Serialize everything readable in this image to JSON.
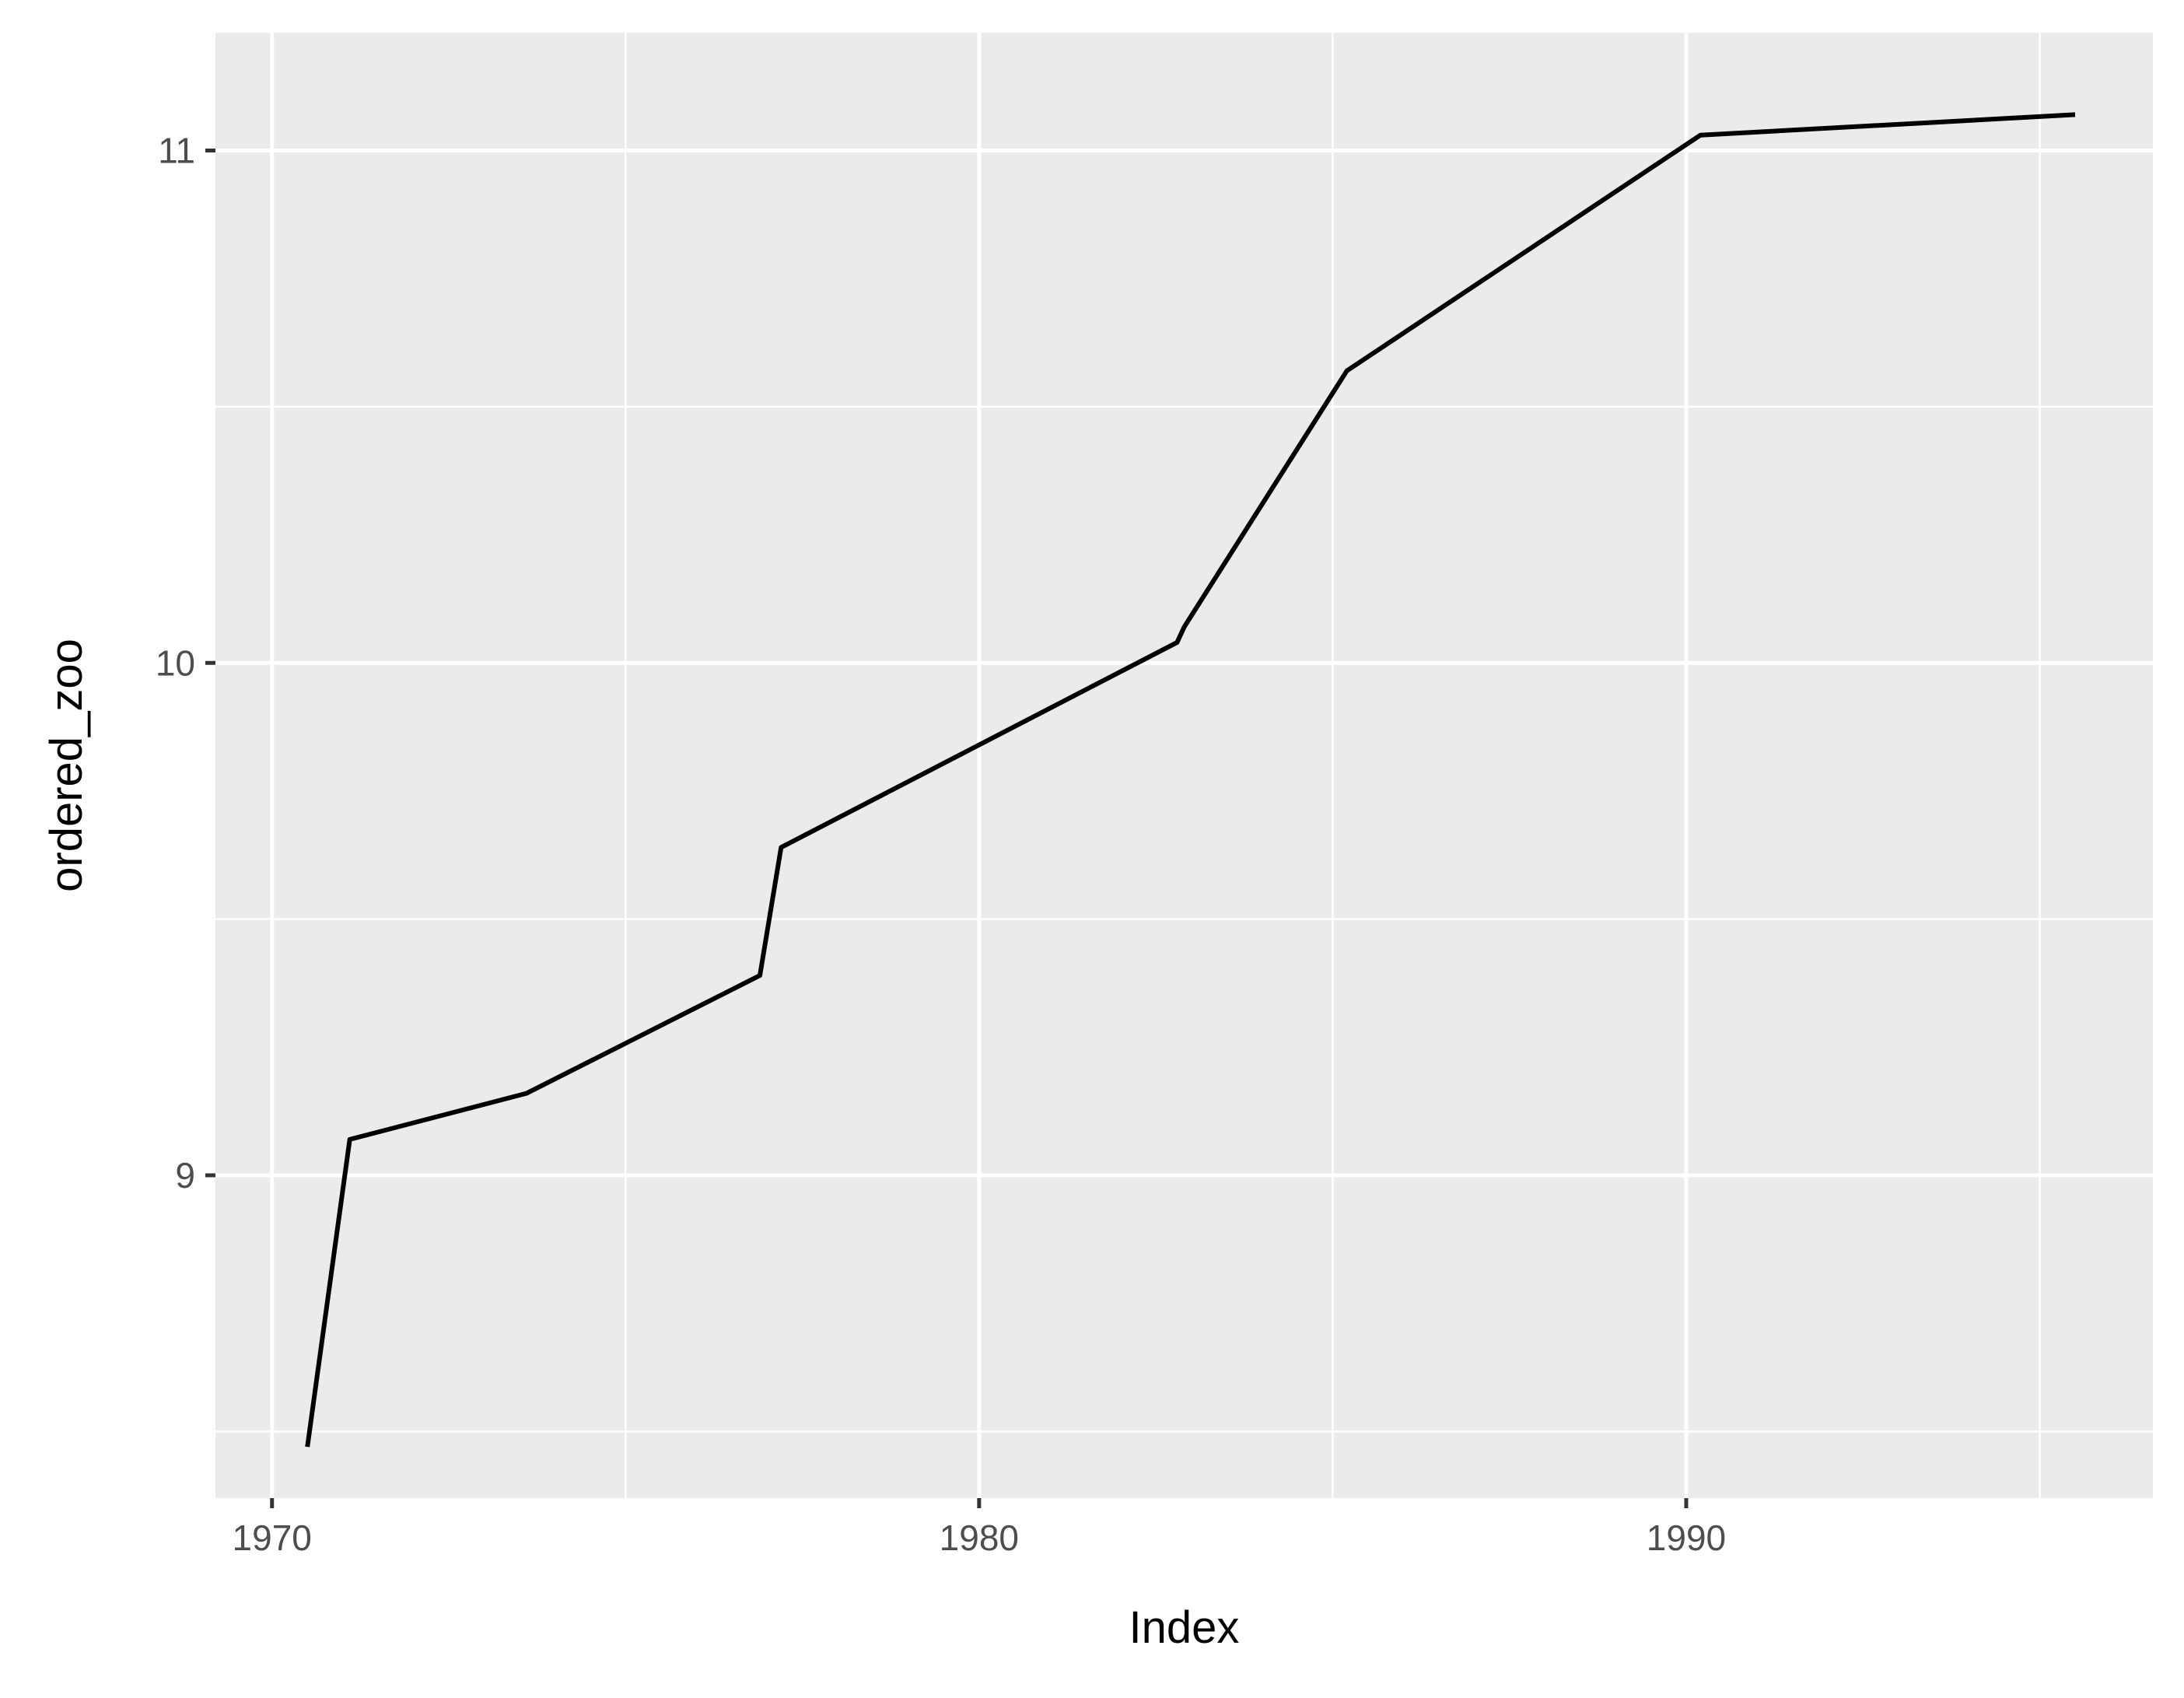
{
  "chart_data": {
    "type": "line",
    "xlabel": "Index",
    "ylabel": "ordered_zoo",
    "xlim": [
      1969.2,
      1996.6
    ],
    "ylim": [
      8.37,
      11.23
    ],
    "x_ticks": [
      1970,
      1980,
      1990
    ],
    "x_tick_labels": [
      "1970",
      "1980",
      "1990"
    ],
    "y_ticks": [
      9,
      10,
      11
    ],
    "y_tick_labels": [
      "9",
      "10",
      "11"
    ],
    "grid": true,
    "panel_background": "#ebebeb",
    "grid_color": "#ffffff",
    "line_color": "#000000",
    "series": [
      {
        "x": [
          1970.5,
          1971.1,
          1973.6,
          1976.9,
          1977.2,
          1982.8,
          1982.9,
          1985.2,
          1990.2,
          1995.5
        ],
        "y": [
          8.47,
          9.07,
          9.16,
          9.39,
          9.64,
          10.04,
          10.07,
          10.57,
          11.03,
          11.07
        ]
      }
    ]
  }
}
